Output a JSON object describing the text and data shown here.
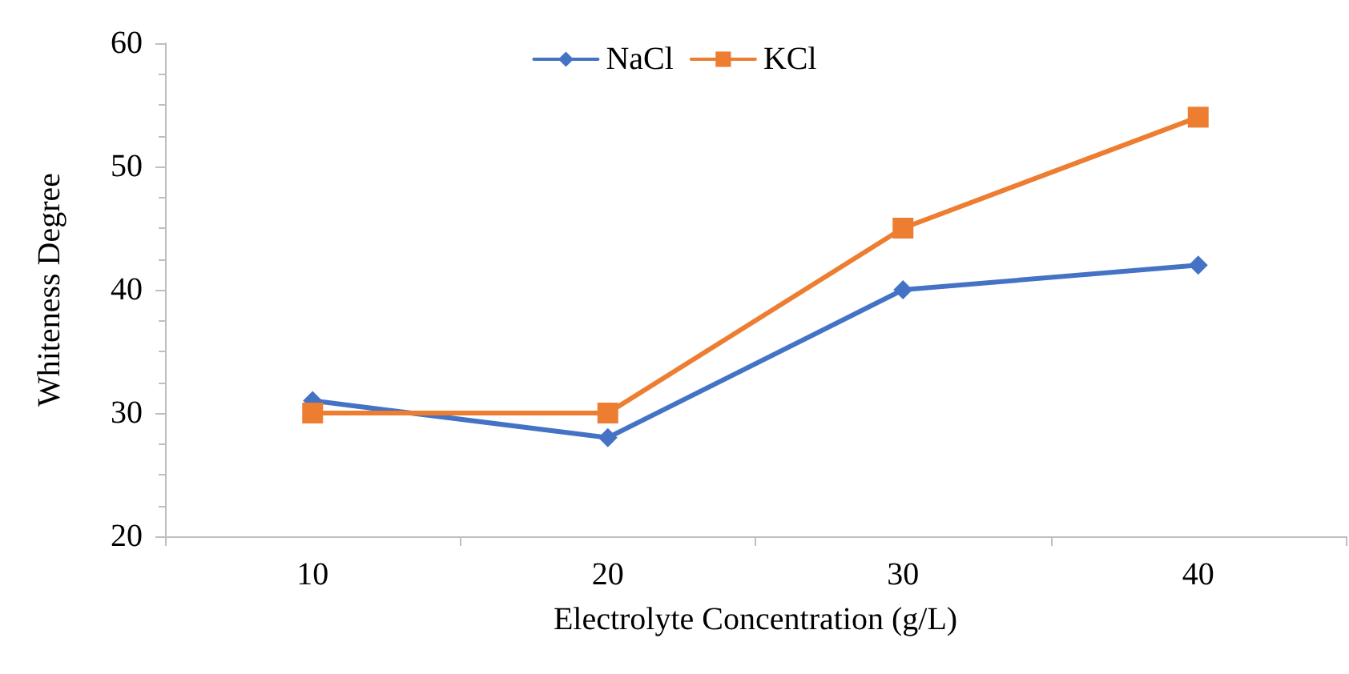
{
  "chart_data": {
    "type": "line",
    "xlabel": "Electrolyte Concentration (g/L)",
    "ylabel": "Whiteness Degree",
    "categories": [
      "10",
      "20",
      "30",
      "40"
    ],
    "series": [
      {
        "name": "NaCl",
        "color": "#4472c4",
        "marker": "diamond",
        "values": [
          31,
          28,
          40,
          42
        ]
      },
      {
        "name": "KCl",
        "color": "#ed7d31",
        "marker": "square",
        "values": [
          30,
          30,
          45,
          54
        ]
      }
    ],
    "ylim": [
      20,
      60
    ],
    "yticks": [
      20,
      30,
      40,
      50,
      60
    ],
    "grid": false,
    "legend": "top",
    "line_style": "solid"
  }
}
